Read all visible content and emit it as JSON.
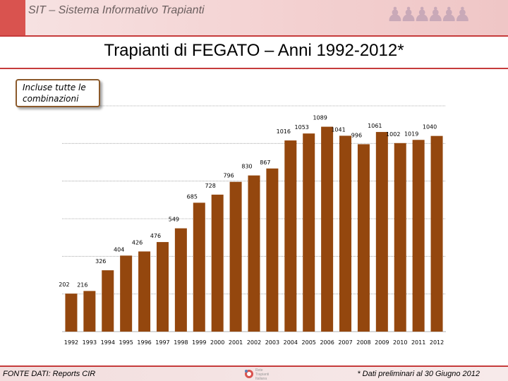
{
  "header": {
    "system_title": "SIT – Sistema Informativo Trapianti"
  },
  "title": "Trapianti di FEGATO – Anni 1992-2012*",
  "callout": {
    "line1": "Incluse tutte le",
    "line2": "combinazioni"
  },
  "footer": {
    "source": "FONTE DATI: Reports CIR",
    "note": "* Dati preliminari al 30 Giugno 2012",
    "logo_lines": [
      "Rete",
      "Trapianti",
      "Italiana"
    ]
  },
  "colors": {
    "bar": "#94470e",
    "accent": "#c63b3b",
    "grid": "#999999"
  },
  "chart_data": {
    "type": "bar",
    "title": "Trapianti di FEGATO – Anni 1992-2012*",
    "xlabel": "",
    "ylabel": "",
    "categories": [
      "1992",
      "1993",
      "1994",
      "1995",
      "1996",
      "1997",
      "1998",
      "1999",
      "2000",
      "2001",
      "2002",
      "2003",
      "2004",
      "2005",
      "2006",
      "2007",
      "2008",
      "2009",
      "2010",
      "2011",
      "2012"
    ],
    "values": [
      202,
      216,
      326,
      404,
      426,
      476,
      549,
      685,
      728,
      796,
      830,
      867,
      1016,
      1053,
      1089,
      1041,
      996,
      1061,
      1002,
      1019,
      1040
    ],
    "ylim": [
      0,
      1200
    ],
    "grid": true,
    "legend": "none"
  }
}
